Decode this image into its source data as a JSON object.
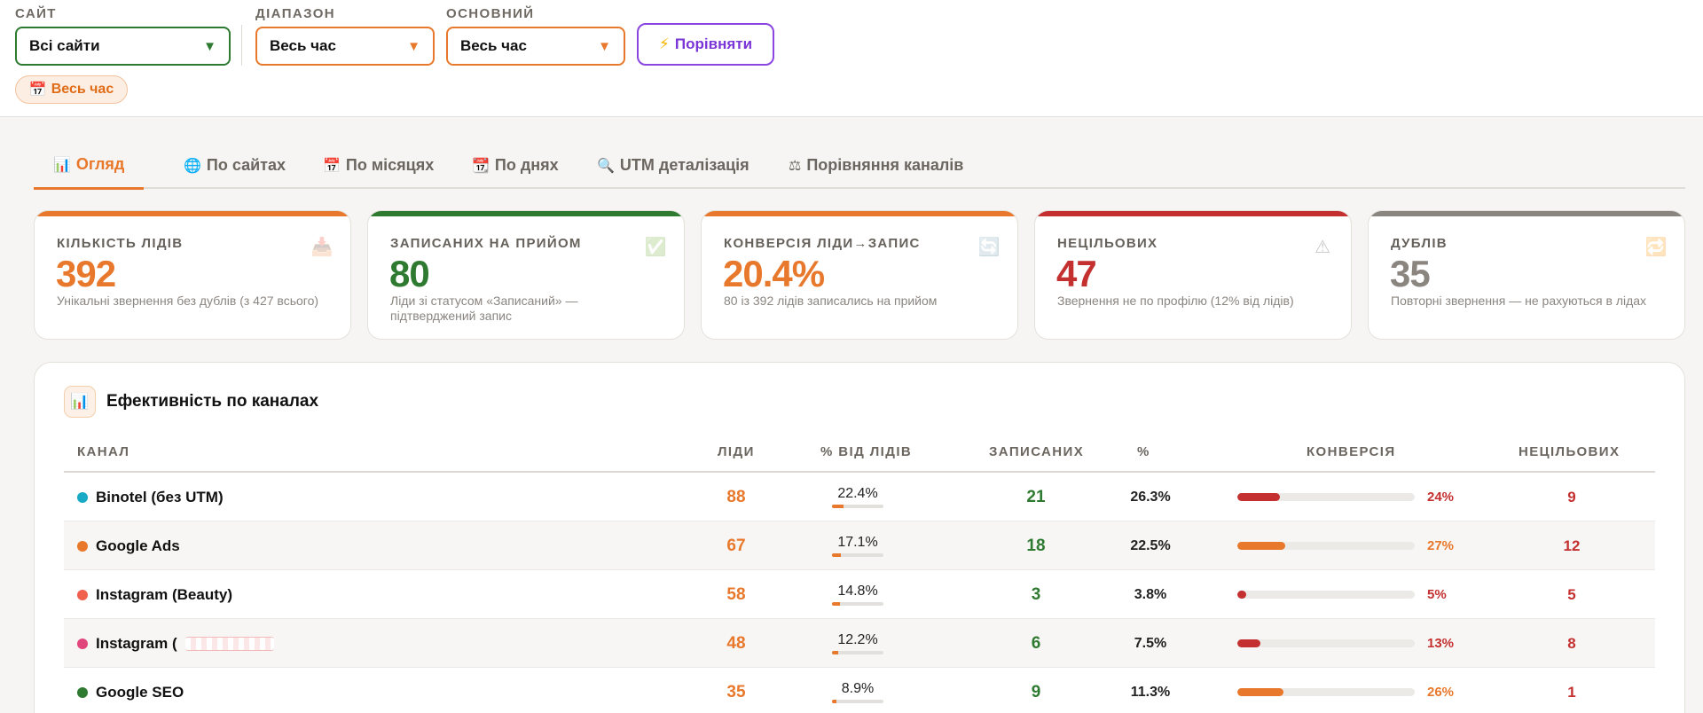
{
  "filters": {
    "site": {
      "label": "САЙТ",
      "value": "Всі сайти"
    },
    "range": {
      "label": "ДІАПАЗОН",
      "value": "Весь час"
    },
    "base": {
      "label": "ОСНОВНИЙ",
      "value": "Весь час"
    },
    "compare_label": "Порівняти",
    "period_chip": "Весь час"
  },
  "tabs": [
    {
      "label": "Огляд",
      "icon": "📊",
      "active": true
    },
    {
      "label": "По сайтах",
      "icon": "🌐"
    },
    {
      "label": "По місяцях",
      "icon": "📅"
    },
    {
      "label": "По днях",
      "icon": "📆"
    },
    {
      "label": "UTM деталізація",
      "icon": "🔍"
    },
    {
      "label": "Порівняння каналів",
      "icon": "⚖"
    }
  ],
  "kpis": [
    {
      "label": "КІЛЬКІСТЬ ЛІДІВ",
      "value": "392",
      "desc": "Унікальні звернення без дублів (з 427 всього)",
      "color": "#e8782b",
      "icon": "📥"
    },
    {
      "label": "ЗАПИСАНИХ НА ПРИЙОМ",
      "value": "80",
      "desc": "Ліди зі статусом «Записаний» — підтверджений запис",
      "color": "#2f7a31",
      "icon": "✅"
    },
    {
      "label": "КОНВЕРСІЯ ЛІДИ→ЗАПИС",
      "value": "20.4%",
      "desc": "80 із 392 лідів записались на прийом",
      "color": "#e8782b",
      "icon": "🔄"
    },
    {
      "label": "НЕЦІЛЬОВИХ",
      "value": "47",
      "desc": "Звернення не по профілю (12% від лідів)",
      "color": "#c43030",
      "icon": "⚠"
    },
    {
      "label": "ДУБЛІВ",
      "value": "35",
      "desc": "Повторні звернення — не рахуються в лідах",
      "color": "#8b8580",
      "icon": "🔁"
    }
  ],
  "channels": {
    "title": "Ефективність по каналах",
    "icon": "📊",
    "headers": {
      "channel": "КАНАЛ",
      "leads": "ЛІДИ",
      "share": "% ВІД ЛІДІВ",
      "recorded": "ЗАПИСАНИХ",
      "pct": "%",
      "conversion": "КОНВЕРСІЯ",
      "untargeted": "НЕЦІЛЬОВИХ"
    },
    "rows": [
      {
        "name": "Binotel (без UTM)",
        "dot": "#18a9c4",
        "leads": "88",
        "share": "22.4%",
        "share_frac": 0.224,
        "recorded": "21",
        "pct": "26.3%",
        "conv": "24%",
        "conv_frac": 0.24,
        "conv_color": "#c43030",
        "untargeted": "9"
      },
      {
        "name": "Google Ads",
        "dot": "#e8782b",
        "leads": "67",
        "share": "17.1%",
        "share_frac": 0.171,
        "recorded": "18",
        "pct": "22.5%",
        "conv": "27%",
        "conv_frac": 0.27,
        "conv_color": "#e8782b",
        "untargeted": "12"
      },
      {
        "name": "Instagram (Beauty)",
        "dot": "#f0604d",
        "leads": "58",
        "share": "14.8%",
        "share_frac": 0.148,
        "recorded": "3",
        "pct": "3.8%",
        "conv": "5%",
        "conv_frac": 0.05,
        "conv_color": "#c43030",
        "untargeted": "5"
      },
      {
        "name": "Instagram (",
        "dot": "#e0457b",
        "leads": "48",
        "share": "12.2%",
        "share_frac": 0.122,
        "recorded": "6",
        "pct": "7.5%",
        "conv": "13%",
        "conv_frac": 0.13,
        "conv_color": "#c43030",
        "untargeted": "8",
        "redacted": true
      },
      {
        "name": "Google SEO",
        "dot": "#2f7a31",
        "leads": "35",
        "share": "8.9%",
        "share_frac": 0.089,
        "recorded": "9",
        "pct": "11.3%",
        "conv": "26%",
        "conv_frac": 0.26,
        "conv_color": "#e8782b",
        "untargeted": "1"
      }
    ]
  }
}
